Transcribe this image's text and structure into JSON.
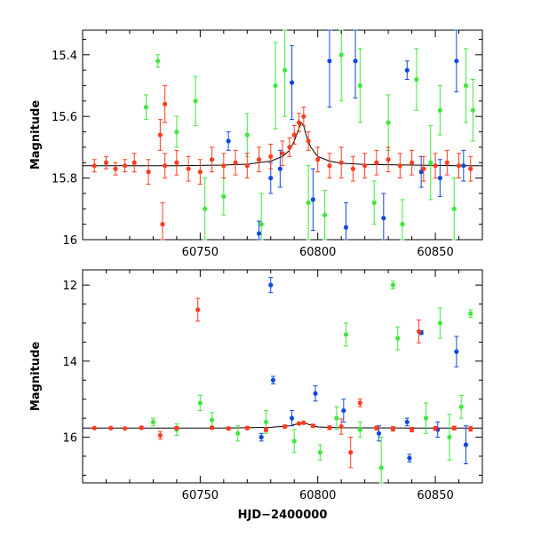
{
  "colors": {
    "red": "#ff3b1f",
    "green": "#3ee83e",
    "blue": "#1048e0",
    "model": "#000000"
  },
  "chart_data": [
    {
      "id": "top",
      "type": "scatter",
      "title": "",
      "xlabel": "",
      "ylabel": "Magnitude",
      "xlim": [
        60700,
        60870
      ],
      "ylim": [
        16.0,
        15.32
      ],
      "y_inverted": true,
      "xticks": [
        60750,
        60800,
        60850
      ],
      "xtick_labels": [
        "60750",
        "60800",
        "60850"
      ],
      "yticks": [
        15.4,
        15.6,
        15.8,
        16.0
      ],
      "ytick_labels": [
        "15.4",
        "15.6",
        "15.8",
        "16"
      ],
      "model_curve": {
        "x": [
          60700,
          60720,
          60740,
          60760,
          60770,
          60780,
          60785,
          60788,
          60790,
          60792,
          60793,
          60794,
          60795,
          60797,
          60800,
          60805,
          60810,
          60820,
          60840,
          60860,
          60870
        ],
        "y": [
          15.76,
          15.76,
          15.76,
          15.758,
          15.755,
          15.745,
          15.73,
          15.71,
          15.68,
          15.64,
          15.62,
          15.63,
          15.66,
          15.7,
          15.73,
          15.745,
          15.752,
          15.756,
          15.758,
          15.76,
          15.76
        ]
      },
      "series": [
        {
          "color": "red",
          "x": [
            60705,
            60710,
            60714,
            60718,
            60722,
            60728,
            60733,
            60735,
            60740,
            60745,
            60750,
            60755,
            60760,
            60765,
            60770,
            60775,
            60780,
            60785,
            60788,
            60790,
            60792,
            60794,
            60796,
            60800,
            60805,
            60810,
            60815,
            60820,
            60825,
            60830,
            60835,
            60840,
            60845,
            60850,
            60855,
            60860,
            60865,
            60734,
            60735
          ],
          "y": [
            15.76,
            15.75,
            15.77,
            15.76,
            15.75,
            15.78,
            15.66,
            15.76,
            15.75,
            15.77,
            15.78,
            15.74,
            15.76,
            15.75,
            15.76,
            15.74,
            15.73,
            15.72,
            15.7,
            15.66,
            15.62,
            15.6,
            15.68,
            15.74,
            15.76,
            15.75,
            15.77,
            15.76,
            15.75,
            15.74,
            15.76,
            15.75,
            15.77,
            15.76,
            15.75,
            15.76,
            15.77,
            15.95,
            15.56
          ],
          "err": [
            0.02,
            0.02,
            0.02,
            0.02,
            0.03,
            0.04,
            0.05,
            0.04,
            0.04,
            0.04,
            0.04,
            0.04,
            0.04,
            0.04,
            0.04,
            0.04,
            0.04,
            0.04,
            0.03,
            0.03,
            0.03,
            0.03,
            0.03,
            0.04,
            0.04,
            0.05,
            0.04,
            0.04,
            0.04,
            0.04,
            0.04,
            0.04,
            0.04,
            0.04,
            0.04,
            0.04,
            0.04,
            0.07,
            0.06
          ]
        },
        {
          "color": "green",
          "x": [
            60727,
            60732,
            60740,
            60748,
            60752,
            60760,
            60770,
            60776,
            60782,
            60786,
            60796,
            60803,
            60810,
            60818,
            60824,
            60830,
            60836,
            60842,
            60848,
            60852,
            60858,
            60863,
            60866
          ],
          "y": [
            15.57,
            15.42,
            15.65,
            15.55,
            15.9,
            15.86,
            15.66,
            15.95,
            15.5,
            15.45,
            15.88,
            15.92,
            15.4,
            15.5,
            15.88,
            15.62,
            15.95,
            15.48,
            15.75,
            15.58,
            15.9,
            15.5,
            15.58
          ],
          "err": [
            0.04,
            0.02,
            0.05,
            0.08,
            0.1,
            0.06,
            0.07,
            0.1,
            0.14,
            0.15,
            0.12,
            0.08,
            0.15,
            0.12,
            0.07,
            0.09,
            0.08,
            0.1,
            0.12,
            0.08,
            0.1,
            0.12,
            0.1
          ]
        },
        {
          "color": "blue",
          "x": [
            60762,
            60775,
            60780,
            60784,
            60789,
            60798,
            60805,
            60812,
            60816,
            60828,
            60838,
            60844,
            60852,
            60859,
            60862
          ],
          "y": [
            15.68,
            15.98,
            15.8,
            15.77,
            15.49,
            15.87,
            15.42,
            15.96,
            15.42,
            15.93,
            15.45,
            15.78,
            15.8,
            15.42,
            15.76
          ],
          "err": [
            0.03,
            0.04,
            0.05,
            0.06,
            0.12,
            0.1,
            0.15,
            0.08,
            0.12,
            0.08,
            0.03,
            0.05,
            0.06,
            0.1,
            0.05
          ]
        }
      ]
    },
    {
      "id": "bottom",
      "type": "scatter",
      "title": "",
      "xlabel": "HJD−2400000",
      "ylabel": "Magnitude",
      "xlim": [
        60700,
        60870
      ],
      "ylim": [
        17.2,
        11.6
      ],
      "y_inverted": true,
      "xticks": [
        60750,
        60800,
        60850
      ],
      "xtick_labels": [
        "60750",
        "60800",
        "60850"
      ],
      "yticks": [
        12,
        14,
        16
      ],
      "ytick_labels": [
        "12",
        "14",
        "16"
      ],
      "model_curve": {
        "x": [
          60700,
          60720,
          60760,
          60780,
          60788,
          60792,
          60794,
          60796,
          60800,
          60810,
          60840,
          60870
        ],
        "y": [
          15.76,
          15.76,
          15.76,
          15.74,
          15.7,
          15.64,
          15.62,
          15.66,
          15.73,
          15.75,
          15.76,
          15.76
        ]
      },
      "series": [
        {
          "color": "red",
          "x": [
            60705,
            60712,
            60718,
            60725,
            60733,
            60740,
            60749,
            60755,
            60762,
            60770,
            60778,
            60786,
            60792,
            60794,
            60798,
            60805,
            60810,
            60814,
            60818,
            60825,
            60832,
            60840,
            60843,
            60850,
            60858,
            60865
          ],
          "y": [
            15.76,
            15.76,
            15.77,
            15.75,
            15.95,
            15.76,
            12.65,
            15.75,
            15.77,
            15.76,
            15.8,
            15.72,
            15.64,
            15.62,
            15.7,
            15.75,
            15.72,
            16.4,
            15.1,
            15.76,
            15.78,
            15.8,
            13.22,
            15.77,
            15.76,
            15.78
          ],
          "err": [
            0.02,
            0.02,
            0.02,
            0.04,
            0.1,
            0.04,
            0.3,
            0.04,
            0.04,
            0.04,
            0.05,
            0.04,
            0.03,
            0.03,
            0.04,
            0.05,
            0.2,
            0.4,
            0.1,
            0.05,
            0.06,
            0.06,
            0.3,
            0.05,
            0.05,
            0.06
          ]
        },
        {
          "color": "green",
          "x": [
            60730,
            60740,
            60750,
            60755,
            60766,
            60778,
            60790,
            60801,
            60808,
            60812,
            60818,
            60827,
            60832,
            60834,
            60846,
            60852,
            60856,
            60861,
            60865
          ],
          "y": [
            15.6,
            15.8,
            15.1,
            15.55,
            15.9,
            15.6,
            16.1,
            16.4,
            15.5,
            13.3,
            15.8,
            16.8,
            12.0,
            13.4,
            15.5,
            13.0,
            16.0,
            15.2,
            12.75
          ],
          "err": [
            0.1,
            0.15,
            0.2,
            0.2,
            0.2,
            0.3,
            0.3,
            0.2,
            0.3,
            0.3,
            0.2,
            0.8,
            0.1,
            0.3,
            0.4,
            0.4,
            0.6,
            0.3,
            0.1
          ]
        },
        {
          "color": "blue",
          "x": [
            60776,
            60780,
            60781,
            60789,
            60799,
            60811,
            60826,
            60838,
            60839,
            60844,
            60851,
            60859,
            60863
          ],
          "y": [
            16.0,
            12.0,
            14.5,
            15.5,
            14.85,
            15.3,
            15.9,
            15.6,
            16.55,
            13.25,
            15.8,
            13.75,
            16.2
          ],
          "err": [
            0.1,
            0.2,
            0.1,
            0.2,
            0.2,
            0.3,
            0.2,
            0.1,
            0.1,
            0.05,
            0.2,
            0.4,
            0.5
          ]
        }
      ]
    }
  ]
}
